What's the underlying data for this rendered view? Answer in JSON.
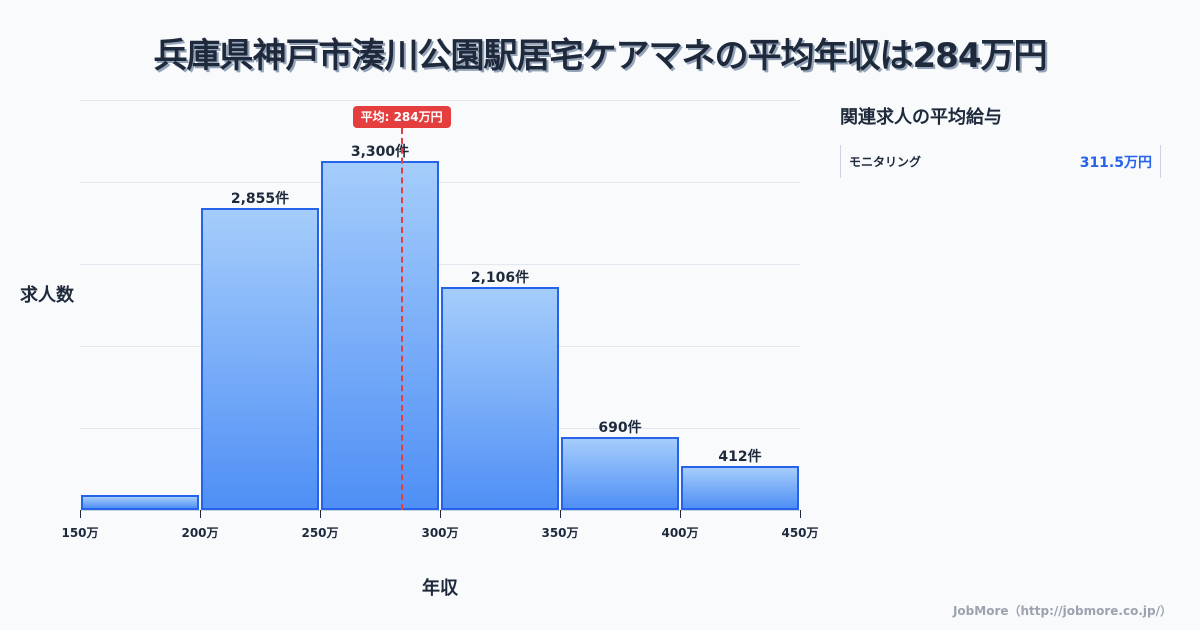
{
  "title": "兵庫県神戸市湊川公園駅居宅ケアマネの平均年収は284万円",
  "chart_data": {
    "type": "bar",
    "title": "兵庫県神戸市湊川公園駅居宅ケアマネの平均年収は284万円",
    "xlabel": "年収",
    "ylabel": "求人数",
    "categories": [
      "150万-200万",
      "200万-250万",
      "250万-300万",
      "300万-350万",
      "350万-400万",
      "400万-450万"
    ],
    "values": [
      142,
      2855,
      3300,
      2106,
      690,
      412
    ],
    "value_labels": [
      "",
      "2,855件",
      "3,300件",
      "2,106件",
      "690件",
      "412件"
    ],
    "x_ticks": [
      "150万",
      "200万",
      "250万",
      "300万",
      "350万",
      "400万",
      "450万"
    ],
    "xlim": [
      150,
      450
    ],
    "ylim": [
      0,
      3877
    ],
    "grid": true,
    "average": {
      "value": 284,
      "label": "平均: 284万円",
      "color": "#e53e3e"
    },
    "bar_color": "#2563eb"
  },
  "axis": {
    "ylabel": "求人数",
    "xlabel": "年収"
  },
  "side": {
    "title": "関連求人の平均給与",
    "items": [
      {
        "name": "モニタリング",
        "value": "311.5万円"
      }
    ]
  },
  "footer": "JobMore（http://jobmore.co.jp/）"
}
